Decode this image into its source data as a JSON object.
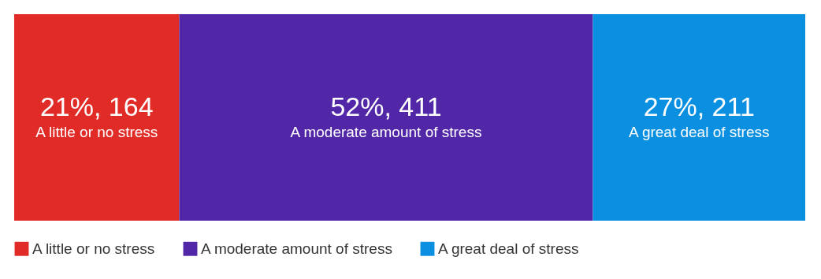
{
  "chart_data": {
    "type": "bar",
    "orientation": "horizontal",
    "stacked": true,
    "categories": [
      null
    ],
    "tick_labels": false,
    "legend": "bottom",
    "series": [
      {
        "name": "A little or no stress",
        "color": "#e02b27",
        "values": [
          164
        ],
        "value_labels": [
          "21%, 164"
        ]
      },
      {
        "name": "A moderate amount of stress",
        "color": "#5127a8",
        "values": [
          411
        ],
        "value_labels": [
          "52%, 411"
        ]
      },
      {
        "name": "A great deal of stress",
        "color": "#0b8fe0",
        "values": [
          211
        ],
        "value_labels": [
          "27%, 211"
        ]
      }
    ]
  }
}
